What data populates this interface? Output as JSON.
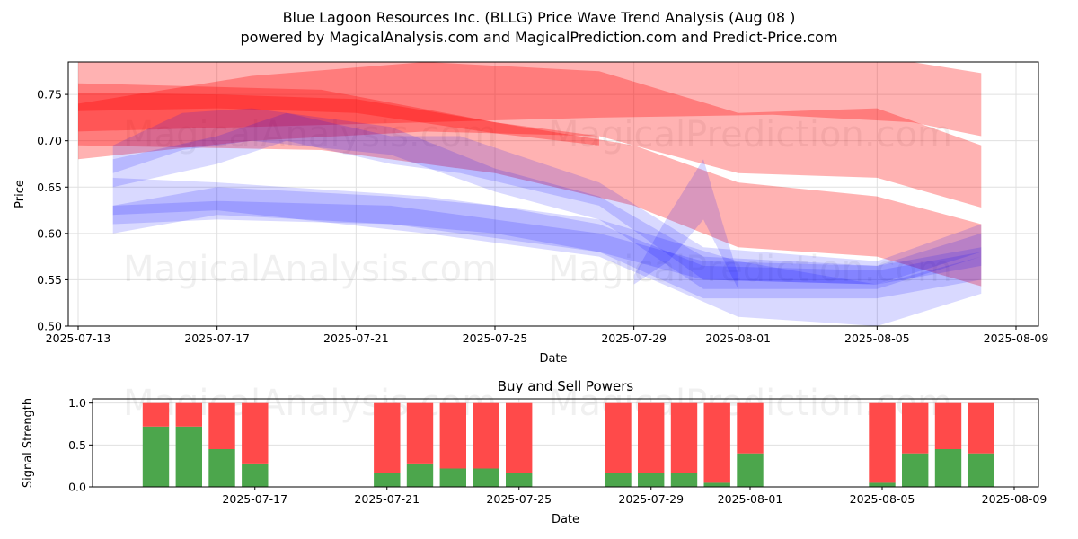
{
  "title_line1": "Blue Lagoon Resources Inc. (BLLG) Price Wave Trend Analysis (Aug 08 )",
  "title_line2": "powered by MagicalAnalysis.com and MagicalPrediction.com and Predict-Price.com",
  "watermarks": [
    "MagicalAnalysis.com",
    "MagicalPrediction.com"
  ],
  "colors": {
    "red_band": "#ff0000",
    "blue_band": "#0000ff",
    "buy": "#4ca64c",
    "sell": "#ff4a4a",
    "grid": "#e0e0e0"
  },
  "chart_data": [
    {
      "type": "area",
      "title": "",
      "xlabel": "Date",
      "ylabel": "Price",
      "xlim": [
        "2025-07-13",
        "2025-08-09"
      ],
      "ylim": [
        0.5,
        0.785
      ],
      "x_ticks": [
        "2025-07-13",
        "2025-07-17",
        "2025-07-21",
        "2025-07-25",
        "2025-07-29",
        "2025-08-01",
        "2025-08-05",
        "2025-08-09"
      ],
      "y_ticks": [
        "0.50",
        "0.55",
        "0.60",
        "0.65",
        "0.70",
        "0.75"
      ],
      "grid": true,
      "series": [
        {
          "name": "red-wave-1",
          "color": "red",
          "opacity": 0.3,
          "x": [
            "2025-07-13",
            "2025-07-18",
            "2025-07-23",
            "2025-07-28",
            "2025-08-02",
            "2025-08-06",
            "2025-08-08"
          ],
          "upper": [
            0.79,
            0.79,
            0.79,
            0.79,
            0.79,
            0.785,
            0.773
          ],
          "lower": [
            0.71,
            0.715,
            0.72,
            0.725,
            0.728,
            0.72,
            0.705
          ]
        },
        {
          "name": "red-wave-2",
          "color": "red",
          "opacity": 0.3,
          "x": [
            "2025-07-13",
            "2025-07-18",
            "2025-07-23",
            "2025-07-28",
            "2025-08-01",
            "2025-08-05",
            "2025-08-08"
          ],
          "upper": [
            0.74,
            0.77,
            0.785,
            0.775,
            0.73,
            0.735,
            0.695
          ],
          "lower": [
            0.68,
            0.7,
            0.71,
            0.705,
            0.665,
            0.66,
            0.628
          ]
        },
        {
          "name": "red-wave-3",
          "color": "red",
          "opacity": 0.3,
          "x": [
            "2025-07-13",
            "2025-07-20",
            "2025-07-25",
            "2025-07-29",
            "2025-08-01",
            "2025-08-05",
            "2025-08-08"
          ],
          "upper": [
            0.762,
            0.755,
            0.72,
            0.695,
            0.655,
            0.64,
            0.61
          ],
          "lower": [
            0.695,
            0.69,
            0.665,
            0.63,
            0.585,
            0.575,
            0.543
          ]
        },
        {
          "name": "red-wave-4",
          "color": "red",
          "opacity": 0.3,
          "x": [
            "2025-07-13",
            "2025-07-17",
            "2025-07-21",
            "2025-07-25",
            "2025-07-28"
          ],
          "upper": [
            0.752,
            0.75,
            0.745,
            0.72,
            0.705
          ],
          "lower": [
            0.732,
            0.735,
            0.73,
            0.708,
            0.695
          ]
        },
        {
          "name": "blue-wave-1",
          "color": "blue",
          "opacity": 0.15,
          "x": [
            "2025-07-14",
            "2025-07-16",
            "2025-07-18",
            "2025-07-22",
            "2025-07-25",
            "2025-07-28",
            "2025-07-31",
            "2025-08-05",
            "2025-08-08"
          ],
          "upper": [
            0.695,
            0.73,
            0.735,
            0.715,
            0.67,
            0.64,
            0.575,
            0.565,
            0.6
          ],
          "lower": [
            0.665,
            0.69,
            0.7,
            0.685,
            0.645,
            0.615,
            0.54,
            0.54,
            0.575
          ]
        },
        {
          "name": "blue-wave-2",
          "color": "blue",
          "opacity": 0.15,
          "x": [
            "2025-07-14",
            "2025-07-17",
            "2025-07-19",
            "2025-07-22",
            "2025-07-24",
            "2025-07-28",
            "2025-07-31",
            "2025-08-05",
            "2025-08-08"
          ],
          "upper": [
            0.68,
            0.705,
            0.73,
            0.705,
            0.705,
            0.655,
            0.585,
            0.57,
            0.61
          ],
          "lower": [
            0.65,
            0.675,
            0.7,
            0.675,
            0.665,
            0.63,
            0.55,
            0.545,
            0.58
          ]
        },
        {
          "name": "blue-wave-3",
          "color": "blue",
          "opacity": 0.15,
          "x": [
            "2025-07-14",
            "2025-07-17",
            "2025-07-22",
            "2025-07-25",
            "2025-07-28",
            "2025-07-31",
            "2025-08-05",
            "2025-08-08"
          ],
          "upper": [
            0.63,
            0.65,
            0.64,
            0.63,
            0.61,
            0.565,
            0.56,
            0.58
          ],
          "lower": [
            0.6,
            0.62,
            0.61,
            0.6,
            0.58,
            0.53,
            0.53,
            0.55
          ]
        },
        {
          "name": "blue-wave-4",
          "color": "blue",
          "opacity": 0.15,
          "x": [
            "2025-07-14",
            "2025-07-17",
            "2025-07-22",
            "2025-07-25",
            "2025-07-28",
            "2025-07-31",
            "2025-08-05",
            "2025-08-08"
          ],
          "upper": [
            0.63,
            0.635,
            0.63,
            0.615,
            0.6,
            0.57,
            0.565,
            0.585
          ],
          "lower": [
            0.61,
            0.615,
            0.61,
            0.595,
            0.58,
            0.55,
            0.545,
            0.565
          ]
        },
        {
          "name": "blue-wave-5",
          "color": "blue",
          "opacity": 0.15,
          "x": [
            "2025-07-14",
            "2025-07-17",
            "2025-07-23",
            "2025-07-28",
            "2025-08-01",
            "2025-08-05",
            "2025-08-08"
          ],
          "upper": [
            0.66,
            0.655,
            0.64,
            0.615,
            0.57,
            0.545,
            0.575
          ],
          "lower": [
            0.62,
            0.625,
            0.6,
            0.575,
            0.51,
            0.5,
            0.535
          ]
        },
        {
          "name": "blue-wave-6",
          "color": "blue",
          "opacity": 0.15,
          "x": [
            "2025-07-29",
            "2025-07-30",
            "2025-07-31",
            "2025-08-01"
          ],
          "upper": [
            0.555,
            0.62,
            0.68,
            0.555
          ],
          "lower": [
            0.545,
            0.57,
            0.615,
            0.54
          ]
        }
      ]
    },
    {
      "type": "bar",
      "title": "Buy and Sell Powers",
      "xlabel": "Date",
      "ylabel": "Signal Strength",
      "ylim": [
        0,
        1.05
      ],
      "xlim": [
        "2025-07-12",
        "2025-08-09"
      ],
      "x_ticks": [
        "2025-07-17",
        "2025-07-21",
        "2025-07-25",
        "2025-07-29",
        "2025-08-01",
        "2025-08-05",
        "2025-08-09"
      ],
      "y_ticks": [
        "0.0",
        "0.5",
        "1.0"
      ],
      "grid": true,
      "dates": [
        "2025-07-14",
        "2025-07-15",
        "2025-07-16",
        "2025-07-17",
        "2025-07-21",
        "2025-07-22",
        "2025-07-23",
        "2025-07-24",
        "2025-07-25",
        "2025-07-28",
        "2025-07-29",
        "2025-07-30",
        "2025-07-31",
        "2025-08-01",
        "2025-08-05",
        "2025-08-06",
        "2025-08-07",
        "2025-08-08"
      ],
      "series": [
        {
          "name": "Buy",
          "values": [
            0.72,
            0.72,
            0.45,
            0.28,
            0.17,
            0.28,
            0.22,
            0.22,
            0.17,
            0.17,
            0.17,
            0.17,
            0.05,
            0.4,
            0.05,
            0.4,
            0.45,
            0.4
          ]
        },
        {
          "name": "Sell",
          "values": [
            0.28,
            0.28,
            0.55,
            0.72,
            0.83,
            0.72,
            0.78,
            0.78,
            0.83,
            0.83,
            0.83,
            0.83,
            0.95,
            0.6,
            0.95,
            0.6,
            0.55,
            0.6
          ]
        }
      ]
    }
  ]
}
